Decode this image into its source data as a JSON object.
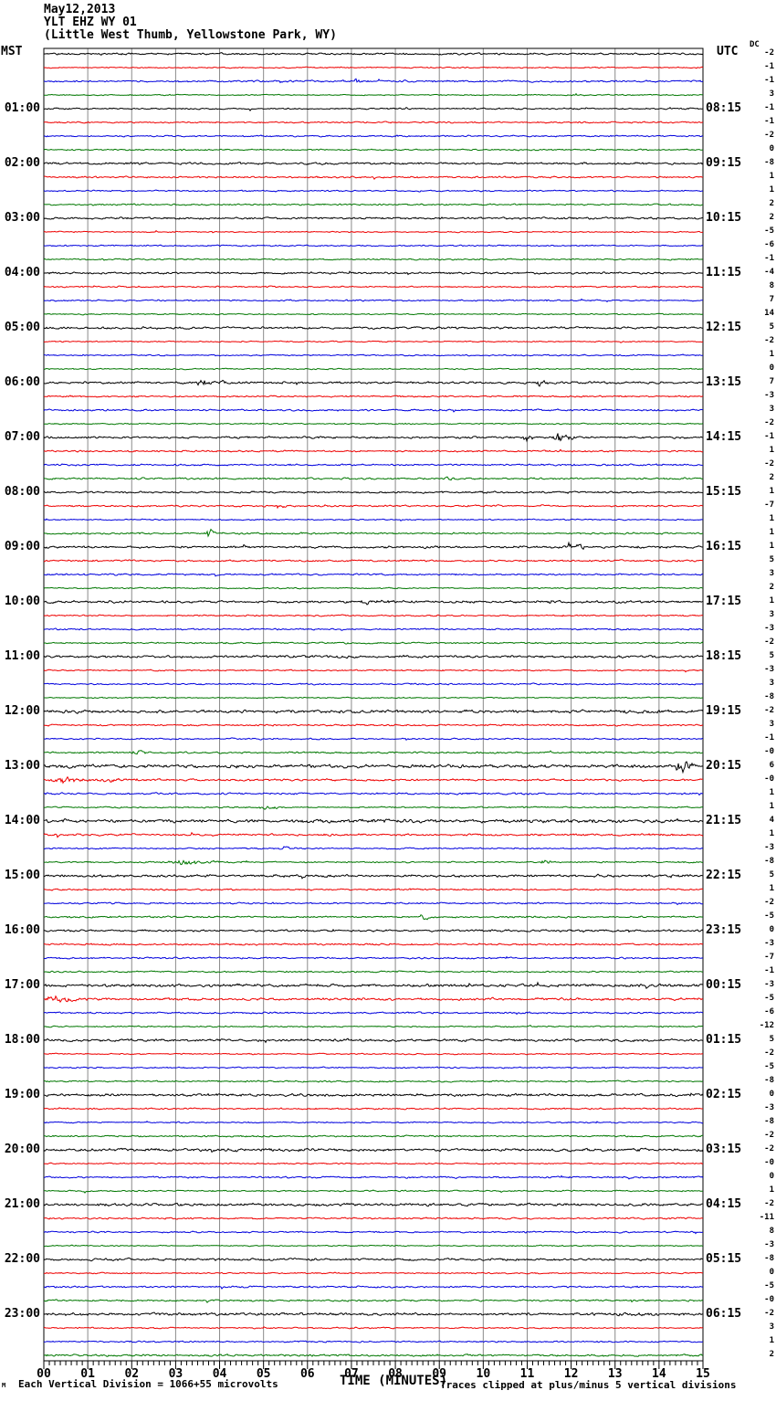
{
  "header": {
    "date": "May12,2013",
    "station": "YLT EHZ WY 01",
    "location": "(Little West Thumb, Yellowstone Park, WY)"
  },
  "axis": {
    "left_label": "MST",
    "right_label": "UTC",
    "dc_label": "DC"
  },
  "footer": {
    "scale_note": "Each Vertical Division = 1066+55 microvolts",
    "time_axis_title": "TIME (MINUTES)",
    "clip_note": "Traces clipped at plus/minus 5 vertical divisions",
    "corner_mark": "M"
  },
  "chart_data": {
    "type": "line",
    "subtype": "seismogram-helicorder",
    "title": "YLT EHZ WY 01 (Little West Thumb, Yellowstone Park, WY)",
    "date": "May12,2013",
    "xlabel": "TIME (MINUTES)",
    "x_range": [
      0,
      15
    ],
    "x_tick_labels": [
      "00",
      "01",
      "02",
      "03",
      "04",
      "05",
      "06",
      "07",
      "08",
      "09",
      "10",
      "11",
      "12",
      "13",
      "14",
      "15"
    ],
    "minor_ticks_per_minute": 8,
    "minutes_per_line": 15,
    "lines_per_hour": 4,
    "total_rows": 96,
    "grid": true,
    "grid_color": "#8a8a8a",
    "border_color": "#000000",
    "background": "#ffffff",
    "trace_color_cycle": [
      "#000000",
      "#ee0000",
      "#0000dd",
      "#007700"
    ],
    "left_time_labels": [
      "01:00",
      "02:00",
      "03:00",
      "04:00",
      "05:00",
      "06:00",
      "07:00",
      "08:00",
      "09:00",
      "10:00",
      "11:00",
      "12:00",
      "13:00",
      "14:00",
      "15:00",
      "16:00",
      "17:00",
      "18:00",
      "19:00",
      "20:00",
      "21:00",
      "22:00",
      "23:00"
    ],
    "right_time_labels": [
      "08:15",
      "09:15",
      "10:15",
      "11:15",
      "12:15",
      "13:15",
      "14:15",
      "15:15",
      "16:15",
      "17:15",
      "18:15",
      "19:15",
      "20:15",
      "21:15",
      "22:15",
      "23:15",
      "00:15",
      "01:15",
      "02:15",
      "03:15",
      "04:15",
      "05:15",
      "06:15"
    ],
    "dc_offsets": [
      "-2",
      "-1",
      "-1",
      "3",
      "-1",
      "-1",
      "-2",
      "0",
      "-8",
      "1",
      "1",
      "2",
      "2",
      "-5",
      "-6",
      "-1",
      "-4",
      "8",
      "7",
      "14",
      "5",
      "-2",
      "1",
      "0",
      "7",
      "-3",
      "3",
      "-2",
      "-1",
      "1",
      "-2",
      "2",
      "1",
      "-7",
      "1",
      "1",
      "1",
      "5",
      "3",
      "2",
      "1",
      "3",
      "-3",
      "-2",
      "5",
      "-3",
      "3",
      "-8",
      "-2",
      "3",
      "-1",
      "-0",
      "6",
      "-0",
      "1",
      "1",
      "4",
      "1",
      "-3",
      "-8",
      "5",
      "1",
      "-2",
      "-5",
      "0",
      "-3",
      "-7",
      "-1",
      "-3",
      "-5",
      "-6",
      "-12",
      "5",
      "-2",
      "-5",
      "-8",
      "0",
      "-3",
      "-8",
      "-2",
      "-2",
      "-0",
      "0",
      "1",
      "-2",
      "-11",
      "8",
      "-3",
      "-8",
      "0",
      "-5",
      "-0",
      "-2",
      "3",
      "1",
      "2"
    ],
    "clip_divisions": 5,
    "events": [
      {
        "row": 2,
        "start": 7.0,
        "end": 7.4,
        "amp": 2.0
      },
      {
        "row": 3,
        "start": 12.0,
        "end": 12.4,
        "amp": 1.6
      },
      {
        "row": 24,
        "start": 3.4,
        "end": 4.5,
        "amp": 3.2
      },
      {
        "row": 24,
        "start": 11.2,
        "end": 11.6,
        "amp": 2.8
      },
      {
        "row": 28,
        "start": 10.9,
        "end": 11.25,
        "amp": 4.5
      },
      {
        "row": 28,
        "start": 11.55,
        "end": 12.15,
        "amp": 6.0
      },
      {
        "row": 31,
        "start": 9.1,
        "end": 9.5,
        "amp": 1.6
      },
      {
        "row": 33,
        "start": 5.3,
        "end": 5.55,
        "amp": 3.0
      },
      {
        "row": 35,
        "start": 3.7,
        "end": 3.95,
        "amp": 5.0
      },
      {
        "row": 36,
        "start": 11.9,
        "end": 12.45,
        "amp": 6.0
      },
      {
        "row": 40,
        "start": 7.2,
        "end": 8.3,
        "amp": 1.8
      },
      {
        "row": 51,
        "start": 2.0,
        "end": 2.5,
        "amp": 1.8
      },
      {
        "row": 52,
        "start": 14.35,
        "end": 14.95,
        "amp": 9.0
      },
      {
        "row": 53,
        "start": 0.0,
        "end": 3.0,
        "amp": 2.4
      },
      {
        "row": 55,
        "start": 4.9,
        "end": 5.6,
        "amp": 1.6
      },
      {
        "row": 58,
        "start": 5.2,
        "end": 6.4,
        "amp": 1.7
      },
      {
        "row": 59,
        "start": 2.8,
        "end": 4.4,
        "amp": 2.2
      },
      {
        "row": 59,
        "start": 11.3,
        "end": 11.7,
        "amp": 1.8
      },
      {
        "row": 63,
        "start": 8.55,
        "end": 8.85,
        "amp": 4.5
      },
      {
        "row": 69,
        "start": 0.05,
        "end": 0.9,
        "amp": 3.5
      },
      {
        "row": 71,
        "start": 11.0,
        "end": 11.4,
        "amp": 1.6
      }
    ],
    "noisy_rows": {
      "8": 1.3,
      "20": 1.2,
      "24": 1.35,
      "28": 1.2,
      "36": 1.2,
      "40": 1.45,
      "44": 1.25,
      "48": 1.4,
      "52": 1.6,
      "53": 1.45,
      "56": 1.6,
      "57": 1.25,
      "60": 1.25,
      "64": 1.2,
      "68": 1.45,
      "69": 1.35,
      "72": 1.25,
      "76": 1.2,
      "80": 1.15,
      "84": 1.15,
      "85": 1.2,
      "88": 1.15,
      "92": 1.4,
      "95": 1.25
    }
  }
}
